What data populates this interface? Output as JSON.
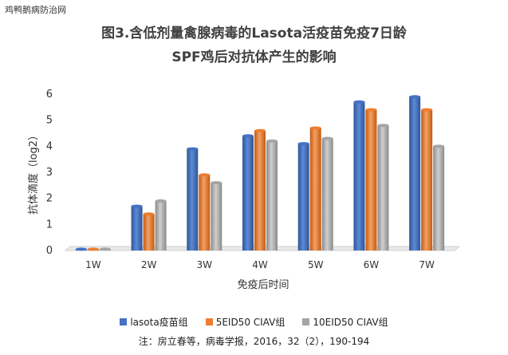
{
  "watermark": "鸡鸭鹅病防治网",
  "chart_data": {
    "type": "bar",
    "title_lines": [
      "图3.含低剂量禽腺病毒的Lasota活疫苗免疫7日龄",
      "SPF鸡后对抗体产生的影响"
    ],
    "xlabel": "免疫后时间",
    "ylabel": "抗体滴度（log2）",
    "ylim": [
      0,
      6
    ],
    "yticks": [
      0,
      1,
      2,
      3,
      4,
      5,
      6
    ],
    "categories": [
      "1W",
      "2W",
      "3W",
      "4W",
      "5W",
      "6W",
      "7W"
    ],
    "series": [
      {
        "name": "lasota疫苗组",
        "color": "#4472C4",
        "values": [
          0.05,
          1.7,
          3.9,
          4.4,
          4.1,
          5.7,
          5.9
        ]
      },
      {
        "name": "5EID50 CIAV组",
        "color": "#ED7D31",
        "values": [
          0.05,
          1.4,
          2.9,
          4.6,
          4.7,
          5.4,
          5.4
        ]
      },
      {
        "name": "10EID50 CIAV组",
        "color": "#A5A5A5",
        "values": [
          0.05,
          1.9,
          2.6,
          4.2,
          4.3,
          4.8,
          4.0
        ]
      }
    ],
    "legend_position": "bottom",
    "grid": false
  },
  "citation": "注：房立春等，病毒学报，2016，32（2），190-194"
}
